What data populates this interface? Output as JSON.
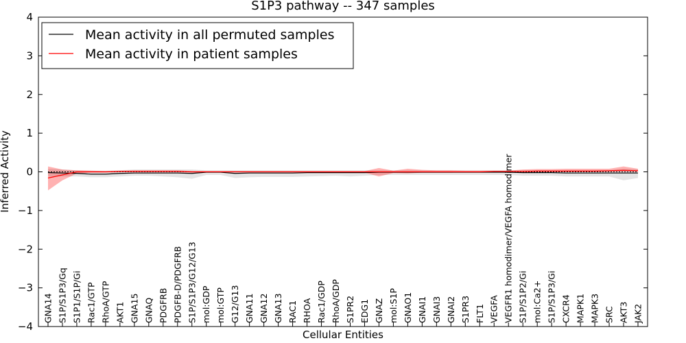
{
  "chart_data": {
    "type": "line",
    "title": "S1P3 pathway -- 347 samples",
    "xlabel": "Cellular Entities",
    "ylabel": "Inferred Activity",
    "ylim": [
      -4,
      4
    ],
    "yticks": [
      -4,
      -3,
      -2,
      -1,
      0,
      1,
      2,
      3,
      4
    ],
    "ytick_labels": [
      "−4",
      "−3",
      "−2",
      "−1",
      "0",
      "1",
      "2",
      "3",
      "4"
    ],
    "legend_position": "top-left",
    "categories": [
      "GNA14",
      "S1P/S1P3/Gq",
      "S1P1/S1P/Gi",
      "Rac1/GTP",
      "RhoA/GTP",
      "AKT1",
      "GNA15",
      "GNAQ",
      "PDGFRB",
      "PDGFB-D/PDGFRB",
      "S1P/S1P3/G12/G13",
      "mol:GDP",
      "mol:GTP",
      "G12/G13",
      "GNA11",
      "GNA12",
      "GNA13",
      "RAC1",
      "RHOA",
      "Rac1/GDP",
      "RhoA/GDP",
      "S1PR2",
      "EDG1",
      "GNAZ",
      "mol:S1P",
      "GNAO1",
      "GNAI1",
      "GNAI3",
      "GNAI2",
      "S1PR3",
      "FLT1",
      "VEGFA",
      "VEGFR1 homodimer/VEGFA homodimer",
      "S1P/S1P2/Gi",
      "mol:Ca2+",
      "S1P/S1P3/Gi",
      "CXCR4",
      "MAPK1",
      "MAPK3",
      "SRC",
      "AKT3",
      "JAK2"
    ],
    "series": [
      {
        "name": "Mean activity in all permuted samples",
        "color": "#000000",
        "values": [
          -0.02,
          -0.03,
          -0.04,
          -0.06,
          -0.06,
          -0.04,
          -0.03,
          -0.03,
          -0.03,
          -0.03,
          -0.04,
          -0.01,
          -0.01,
          -0.04,
          -0.03,
          -0.03,
          -0.03,
          -0.03,
          -0.02,
          -0.02,
          -0.02,
          -0.02,
          -0.02,
          -0.01,
          -0.01,
          -0.01,
          -0.01,
          -0.01,
          -0.01,
          -0.01,
          -0.01,
          -0.01,
          -0.01,
          -0.02,
          -0.02,
          -0.02,
          -0.03,
          -0.03,
          -0.03,
          -0.03,
          -0.03,
          -0.03
        ],
        "band_low": [
          -0.12,
          -0.12,
          -0.12,
          -0.14,
          -0.14,
          -0.12,
          -0.1,
          -0.1,
          -0.12,
          -0.14,
          -0.18,
          -0.08,
          -0.08,
          -0.16,
          -0.14,
          -0.13,
          -0.13,
          -0.13,
          -0.12,
          -0.11,
          -0.1,
          -0.12,
          -0.1,
          -0.08,
          -0.08,
          -0.08,
          -0.08,
          -0.08,
          -0.08,
          -0.08,
          -0.08,
          -0.08,
          -0.08,
          -0.1,
          -0.1,
          -0.1,
          -0.12,
          -0.12,
          -0.12,
          -0.12,
          -0.22,
          -0.16
        ],
        "band_high": [
          0.08,
          0.06,
          0.04,
          0.03,
          0.03,
          0.04,
          0.06,
          0.06,
          0.06,
          0.06,
          0.06,
          0.04,
          0.04,
          0.04,
          0.04,
          0.04,
          0.04,
          0.04,
          0.04,
          0.04,
          0.04,
          0.04,
          0.04,
          0.04,
          0.04,
          0.04,
          0.04,
          0.04,
          0.04,
          0.04,
          0.04,
          0.04,
          0.04,
          0.04,
          0.04,
          0.04,
          0.04,
          0.04,
          0.04,
          0.04,
          0.08,
          0.06
        ]
      },
      {
        "name": "Mean activity in patient samples",
        "color": "#ff0000",
        "values": [
          -0.16,
          -0.08,
          0.0,
          0.0,
          0.0,
          0.01,
          0.01,
          0.01,
          0.01,
          0.01,
          0.0,
          0.0,
          0.0,
          0.0,
          0.0,
          0.0,
          0.0,
          0.0,
          0.0,
          0.0,
          0.0,
          0.0,
          0.0,
          0.0,
          0.0,
          0.0,
          0.0,
          0.0,
          0.0,
          0.0,
          0.0,
          0.01,
          0.01,
          0.01,
          0.02,
          0.02,
          0.02,
          0.02,
          0.02,
          0.03,
          0.04,
          0.03
        ],
        "band_low": [
          -0.48,
          -0.22,
          -0.04,
          -0.02,
          -0.02,
          -0.01,
          -0.01,
          -0.01,
          -0.01,
          -0.01,
          -0.02,
          -0.01,
          -0.01,
          -0.01,
          -0.01,
          -0.01,
          -0.01,
          -0.01,
          -0.01,
          -0.01,
          -0.01,
          -0.02,
          -0.02,
          -0.12,
          -0.03,
          -0.04,
          -0.02,
          -0.02,
          -0.02,
          -0.01,
          -0.01,
          -0.01,
          -0.01,
          -0.01,
          0.0,
          0.0,
          0.0,
          0.0,
          0.0,
          0.0,
          0.0,
          0.0
        ],
        "band_high": [
          0.14,
          0.06,
          0.04,
          0.03,
          0.02,
          0.03,
          0.04,
          0.04,
          0.04,
          0.04,
          0.02,
          0.02,
          0.02,
          0.02,
          0.02,
          0.02,
          0.02,
          0.02,
          0.02,
          0.02,
          0.02,
          0.02,
          0.02,
          0.1,
          0.03,
          0.08,
          0.05,
          0.04,
          0.04,
          0.03,
          0.03,
          0.03,
          0.03,
          0.06,
          0.07,
          0.07,
          0.08,
          0.08,
          0.08,
          0.08,
          0.14,
          0.08
        ]
      }
    ],
    "reference_line": 0
  }
}
